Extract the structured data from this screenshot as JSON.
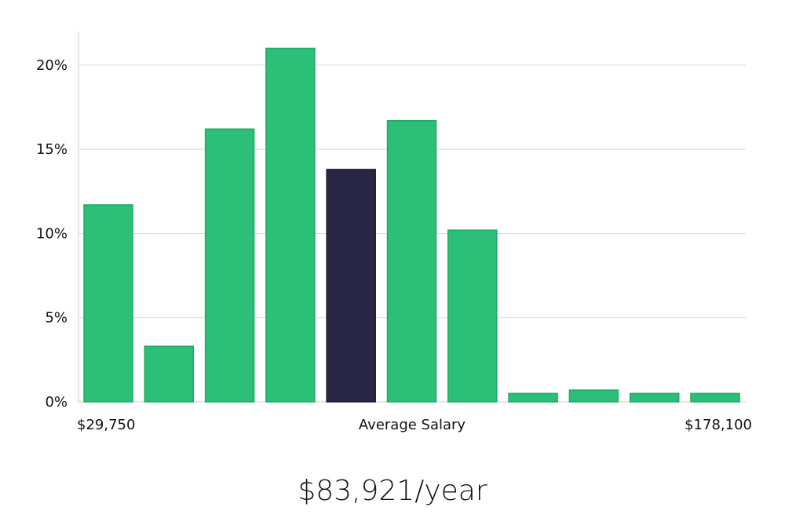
{
  "chart_data": {
    "type": "bar",
    "title": "",
    "xlabel": "Average Salary",
    "ylabel": "",
    "x_min_label": "$29,750",
    "x_max_label": "$178,100",
    "ylim": [
      0,
      22
    ],
    "yticks": [
      0,
      5,
      10,
      15,
      20
    ],
    "ytick_labels": [
      "0%",
      "5%",
      "10%",
      "15%",
      "20%"
    ],
    "grid": true,
    "highlight_index": 4,
    "values": [
      11.7,
      3.3,
      16.2,
      21.0,
      13.8,
      16.7,
      10.2,
      0.5,
      0.7,
      0.5,
      0.5
    ],
    "colors": {
      "bar": "#2bbf78",
      "bar_stroke": "#20a866",
      "highlight": "#282545",
      "grid": "#dddddd",
      "axis": "#cccccc"
    }
  },
  "summary": {
    "salary_text": "$83,921/year"
  }
}
